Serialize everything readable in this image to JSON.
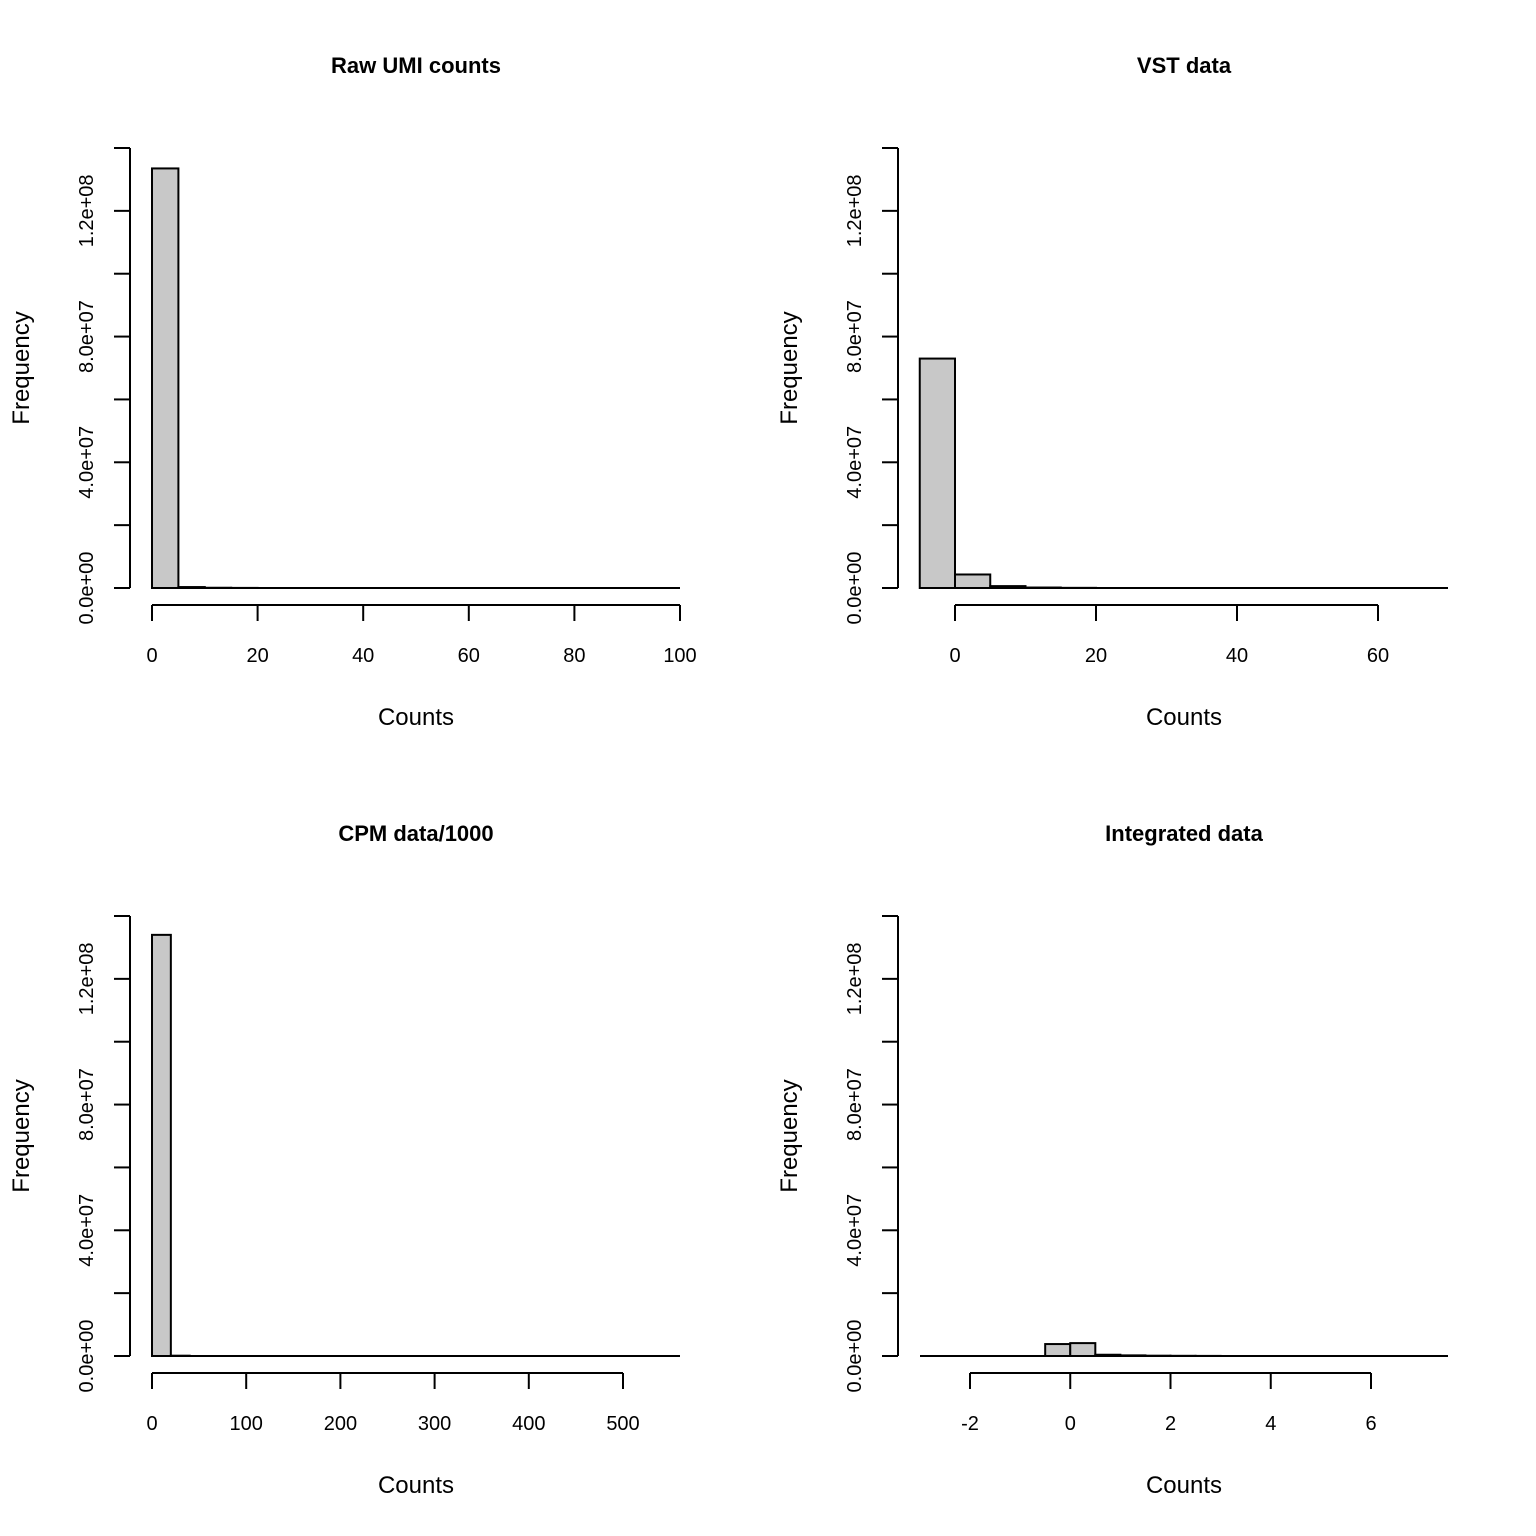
{
  "chart_data": [
    {
      "type": "histogram",
      "title": "Raw UMI counts",
      "xlabel": "Counts",
      "ylabel": "Frequency",
      "xlim": [
        0,
        100
      ],
      "ylim": [
        0,
        140000000
      ],
      "x_ticks": [
        0,
        20,
        40,
        60,
        80,
        100
      ],
      "x_tick_labels": [
        "0",
        "20",
        "40",
        "60",
        "80",
        "100"
      ],
      "y_ticks": [
        0,
        20000000,
        40000000,
        60000000,
        80000000,
        100000000,
        120000000,
        140000000
      ],
      "y_tick_labels": [
        "0.0e+00",
        "",
        "4.0e+07",
        "",
        "8.0e+07",
        "",
        "1.2e+08",
        ""
      ],
      "bins": [
        {
          "x0": 0,
          "x1": 5,
          "count": 133500000
        },
        {
          "x0": 5,
          "x1": 10,
          "count": 300000
        },
        {
          "x0": 10,
          "x1": 15,
          "count": 80000
        },
        {
          "x0": 15,
          "x1": 20,
          "count": 30000
        }
      ]
    },
    {
      "type": "histogram",
      "title": "VST data",
      "xlabel": "Counts",
      "ylabel": "Frequency",
      "xlim": [
        0,
        60
      ],
      "ylim": [
        0,
        140000000
      ],
      "x_ticks": [
        0,
        20,
        40,
        60
      ],
      "x_tick_labels": [
        "0",
        "20",
        "40",
        "60"
      ],
      "y_ticks": [
        0,
        20000000,
        40000000,
        60000000,
        80000000,
        100000000,
        120000000,
        140000000
      ],
      "y_tick_labels": [
        "0.0e+00",
        "",
        "4.0e+07",
        "",
        "8.0e+07",
        "",
        "1.2e+08",
        ""
      ],
      "bins": [
        {
          "x0": -5,
          "x1": 0,
          "count": 73000000
        },
        {
          "x0": 0,
          "x1": 5,
          "count": 4300000
        },
        {
          "x0": 5,
          "x1": 10,
          "count": 600000
        },
        {
          "x0": 10,
          "x1": 15,
          "count": 150000
        },
        {
          "x0": 15,
          "x1": 20,
          "count": 50000
        }
      ]
    },
    {
      "type": "histogram",
      "title": "CPM data/1000",
      "xlabel": "Counts",
      "ylabel": "Frequency",
      "xlim": [
        0,
        500
      ],
      "ylim": [
        0,
        140000000
      ],
      "x_ticks": [
        0,
        100,
        200,
        300,
        400,
        500
      ],
      "x_tick_labels": [
        "0",
        "100",
        "200",
        "300",
        "400",
        "500"
      ],
      "y_ticks": [
        0,
        20000000,
        40000000,
        60000000,
        80000000,
        100000000,
        120000000,
        140000000
      ],
      "y_tick_labels": [
        "0.0e+00",
        "",
        "4.0e+07",
        "",
        "8.0e+07",
        "",
        "1.2e+08",
        ""
      ],
      "bins": [
        {
          "x0": 0,
          "x1": 20,
          "count": 134000000
        },
        {
          "x0": 20,
          "x1": 40,
          "count": 100000
        }
      ]
    },
    {
      "type": "histogram",
      "title": "Integrated data",
      "xlabel": "Counts",
      "ylabel": "Frequency",
      "xlim": [
        -2,
        6
      ],
      "ylim": [
        0,
        140000000
      ],
      "x_ticks": [
        -2,
        0,
        2,
        4,
        6
      ],
      "x_tick_labels": [
        "-2",
        "0",
        "2",
        "4",
        "6"
      ],
      "y_ticks": [
        0,
        20000000,
        40000000,
        60000000,
        80000000,
        100000000,
        120000000,
        140000000
      ],
      "y_tick_labels": [
        "0.0e+00",
        "",
        "4.0e+07",
        "",
        "8.0e+07",
        "",
        "1.2e+08",
        ""
      ],
      "bins": [
        {
          "x0": -0.5,
          "x1": 0,
          "count": 3800000
        },
        {
          "x0": 0,
          "x1": 0.5,
          "count": 4100000
        },
        {
          "x0": 0.5,
          "x1": 1,
          "count": 400000
        },
        {
          "x0": 1,
          "x1": 1.5,
          "count": 200000
        },
        {
          "x0": 1.5,
          "x1": 2,
          "count": 100000
        },
        {
          "x0": 2,
          "x1": 2.5,
          "count": 60000
        },
        {
          "x0": 2.5,
          "x1": 3,
          "count": 30000
        }
      ]
    }
  ]
}
